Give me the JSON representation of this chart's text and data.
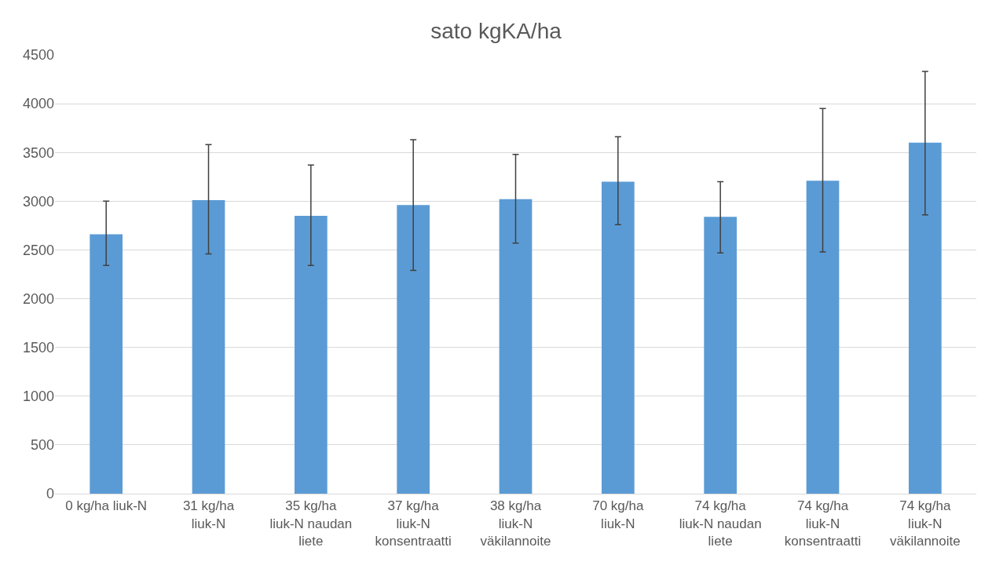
{
  "chart_data": {
    "type": "bar",
    "title": "sato kgKA/ha",
    "categories": [
      "0 kg/ha liuk-N",
      "31 kg/ha liuk-N",
      "35 kg/ha liuk-N naudan liete",
      "37 kg/ha liuk-N konsentraatti",
      "38 kg/ha liuk-N väkilannoite",
      "70 kg/ha liuk-N",
      "74 kg/ha liuk-N naudan liete",
      "74 kg/ha liuk-N konsentraatti",
      "74 kg/ha liuk-N väkilannoite"
    ],
    "values": [
      2660,
      3010,
      2850,
      2960,
      3020,
      3200,
      2840,
      3210,
      3600
    ],
    "errors": [
      [
        2340,
        3000
      ],
      [
        2460,
        3580
      ],
      [
        2340,
        3370
      ],
      [
        2290,
        3630
      ],
      [
        2570,
        3480
      ],
      [
        2760,
        3660
      ],
      [
        2470,
        3200
      ],
      [
        2480,
        3950
      ],
      [
        2860,
        4330
      ]
    ],
    "color": "#5b9bd5",
    "ylim": [
      0,
      4500
    ],
    "yticks": [
      0,
      500,
      1000,
      1500,
      2000,
      2500,
      3000,
      3500,
      4000,
      4500
    ],
    "grid": "y"
  }
}
